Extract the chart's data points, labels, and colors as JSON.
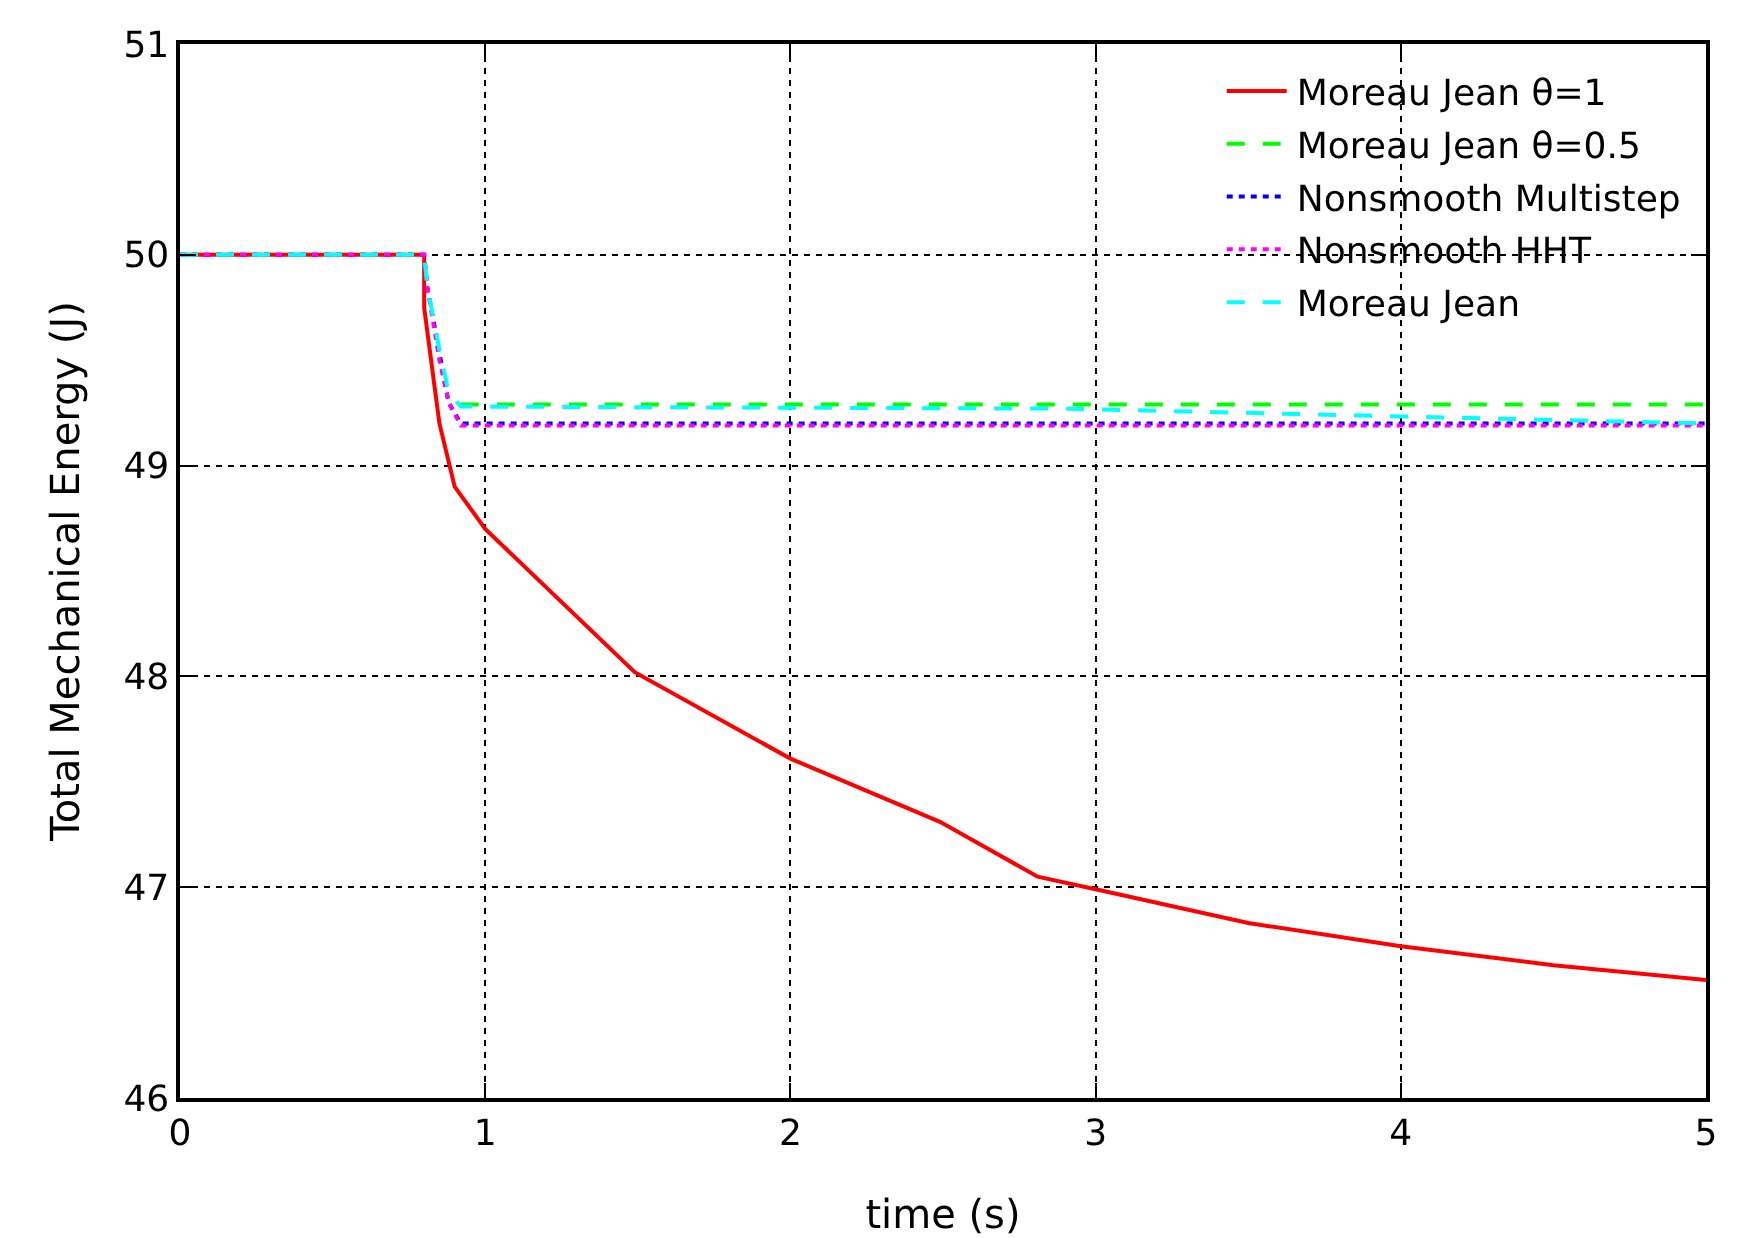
{
  "chart_data": {
    "type": "line",
    "xlabel": "time (s)",
    "ylabel": "Total Mechanical Energy (J)",
    "xlim": [
      0,
      5
    ],
    "ylim": [
      46,
      51
    ],
    "xticks": [
      0,
      1,
      2,
      3,
      4,
      5
    ],
    "yticks": [
      46,
      47,
      48,
      49,
      50,
      51
    ],
    "grid": true,
    "legend": "top right",
    "marker": "none",
    "series": [
      {
        "name": "Moreau Jean θ=1",
        "color": "#ff0000",
        "line_style": "solid",
        "x": [
          0,
          0.8,
          0.8,
          0.85,
          0.9,
          1,
          1.49,
          2,
          2.49,
          2.81,
          3,
          3.5,
          4,
          4.5,
          5
        ],
        "values": [
          50,
          50,
          49.75,
          49.2,
          48.9,
          48.7,
          48.02,
          47.61,
          47.31,
          47.05,
          46.99,
          46.83,
          46.72,
          46.63,
          46.56
        ]
      },
      {
        "name": "Moreau Jean θ=0.5",
        "color": "#00ff00",
        "line_style": "dashed",
        "x": [
          0.92,
          5
        ],
        "values": [
          49.29,
          49.29
        ]
      },
      {
        "name": "Nonsmooth Multistep",
        "color": "#0000ff",
        "line_style": "dotted",
        "x": [
          0,
          0.8,
          0.81,
          0.88,
          0.92,
          5
        ],
        "values": [
          50,
          50,
          49.85,
          49.3,
          49.2,
          49.2
        ]
      },
      {
        "name": "Nonsmooth HHT",
        "color": "#ff00ff",
        "line_style": "dotted",
        "x": [
          0,
          0.8,
          0.81,
          0.85,
          0.88,
          0.92,
          5
        ],
        "values": [
          50,
          50,
          49.85,
          49.5,
          49.3,
          49.19,
          49.19
        ]
      },
      {
        "name": "Moreau Jean",
        "color": "#00ffff",
        "line_style": "dashed",
        "x": [
          0,
          0.8,
          0.81,
          0.85,
          0.88,
          0.92,
          2.9,
          5
        ],
        "values": [
          50,
          50,
          49.85,
          49.55,
          49.35,
          49.28,
          49.27,
          49.2
        ]
      }
    ]
  }
}
